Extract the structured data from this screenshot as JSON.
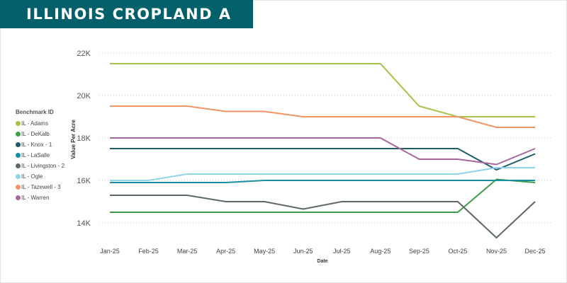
{
  "title": "ILLINOIS CROPLAND A",
  "chart_data": {
    "type": "line",
    "title": "ILLINOIS CROPLAND A",
    "xlabel": "Date",
    "ylabel": "Value Per Acre",
    "ylim": [
      13000,
      22500
    ],
    "yticks": [
      14000,
      16000,
      18000,
      20000,
      22000
    ],
    "ytick_labels": [
      "14K",
      "16K",
      "18K",
      "20K",
      "22K"
    ],
    "categories": [
      "Jan-25",
      "Feb-25",
      "Mar-25",
      "Apr-25",
      "May-25",
      "Jun-25",
      "Jul-25",
      "Aug-25",
      "Sep-25",
      "Oct-25",
      "Nov-25",
      "Dec-25"
    ],
    "legend_title": "Benchmark ID",
    "legend_position": "left",
    "series": [
      {
        "name": "IL - Adams",
        "color": "#a5c249",
        "values": [
          21500,
          21500,
          21500,
          21500,
          21500,
          21500,
          21500,
          21500,
          19500,
          19000,
          19000,
          19000
        ]
      },
      {
        "name": "IL - DeKalb",
        "color": "#3c9e4a",
        "values": [
          14500,
          14500,
          14500,
          14500,
          14500,
          14500,
          14500,
          14500,
          14500,
          14500,
          16050,
          15900
        ]
      },
      {
        "name": "IL - Knox - 1",
        "color": "#1d5d6b",
        "values": [
          17500,
          17500,
          17500,
          17500,
          17500,
          17500,
          17500,
          17500,
          17500,
          17500,
          16500,
          17250
        ]
      },
      {
        "name": "IL - LaSalle",
        "color": "#1a8fa0",
        "values": [
          15900,
          15900,
          15900,
          15900,
          16000,
          16000,
          16000,
          16000,
          16000,
          16000,
          16000,
          16000
        ]
      },
      {
        "name": "IL - Livingston - 2",
        "color": "#5d6768",
        "values": [
          15300,
          15300,
          15300,
          15000,
          15000,
          14650,
          15000,
          15000,
          15000,
          15000,
          13300,
          15000
        ]
      },
      {
        "name": "IL - Ogle",
        "color": "#8ed3ea",
        "values": [
          16000,
          16000,
          16300,
          16300,
          16300,
          16300,
          16300,
          16300,
          16300,
          16300,
          16600,
          16600
        ]
      },
      {
        "name": "IL - Tazewell - 3",
        "color": "#f39465",
        "values": [
          19500,
          19500,
          19500,
          19250,
          19250,
          19000,
          19000,
          19000,
          19000,
          19000,
          18500,
          18500
        ]
      },
      {
        "name": "IL - Warren",
        "color": "#a8679b",
        "values": [
          18000,
          18000,
          18000,
          18000,
          18000,
          18000,
          18000,
          18000,
          17000,
          17000,
          16750,
          17500
        ]
      }
    ]
  }
}
